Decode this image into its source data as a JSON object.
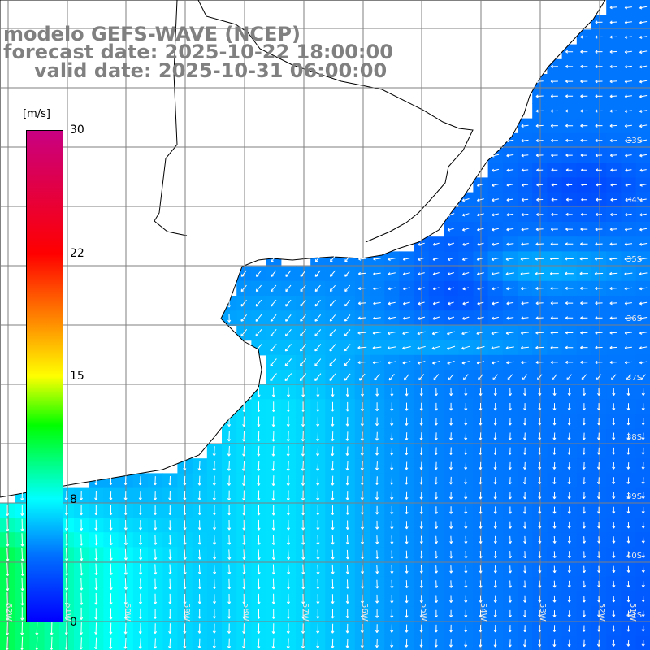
{
  "title": {
    "line1": "modelo GEFS-WAVE (NCEP)",
    "line2": "forecast date: 2025-10-22 18:00:00",
    "line3": "valid date: 2025-10-31 06:00:00"
  },
  "colorbar": {
    "unit": "[m/s]",
    "min": 0,
    "max": 30,
    "ticks": [
      {
        "label": "30",
        "value": 30
      },
      {
        "label": "22",
        "value": 22.5
      },
      {
        "label": "15",
        "value": 15
      },
      {
        "label": "8",
        "value": 7.5
      },
      {
        "label": "0",
        "value": 0
      }
    ]
  },
  "lat_labels": [
    "33S",
    "34S",
    "35S",
    "36S",
    "37S",
    "38S",
    "39S",
    "40S",
    "41S"
  ],
  "lon_labels": [
    "62W",
    "61W",
    "60W",
    "59W",
    "58W",
    "57W",
    "56W",
    "55W",
    "54W",
    "53W",
    "52W",
    "51W"
  ],
  "map": {
    "land_color": "#ffffff",
    "grid_color": "#7f7f7f",
    "arrow_color": "#ffffff",
    "field": "wind speed and direction"
  }
}
